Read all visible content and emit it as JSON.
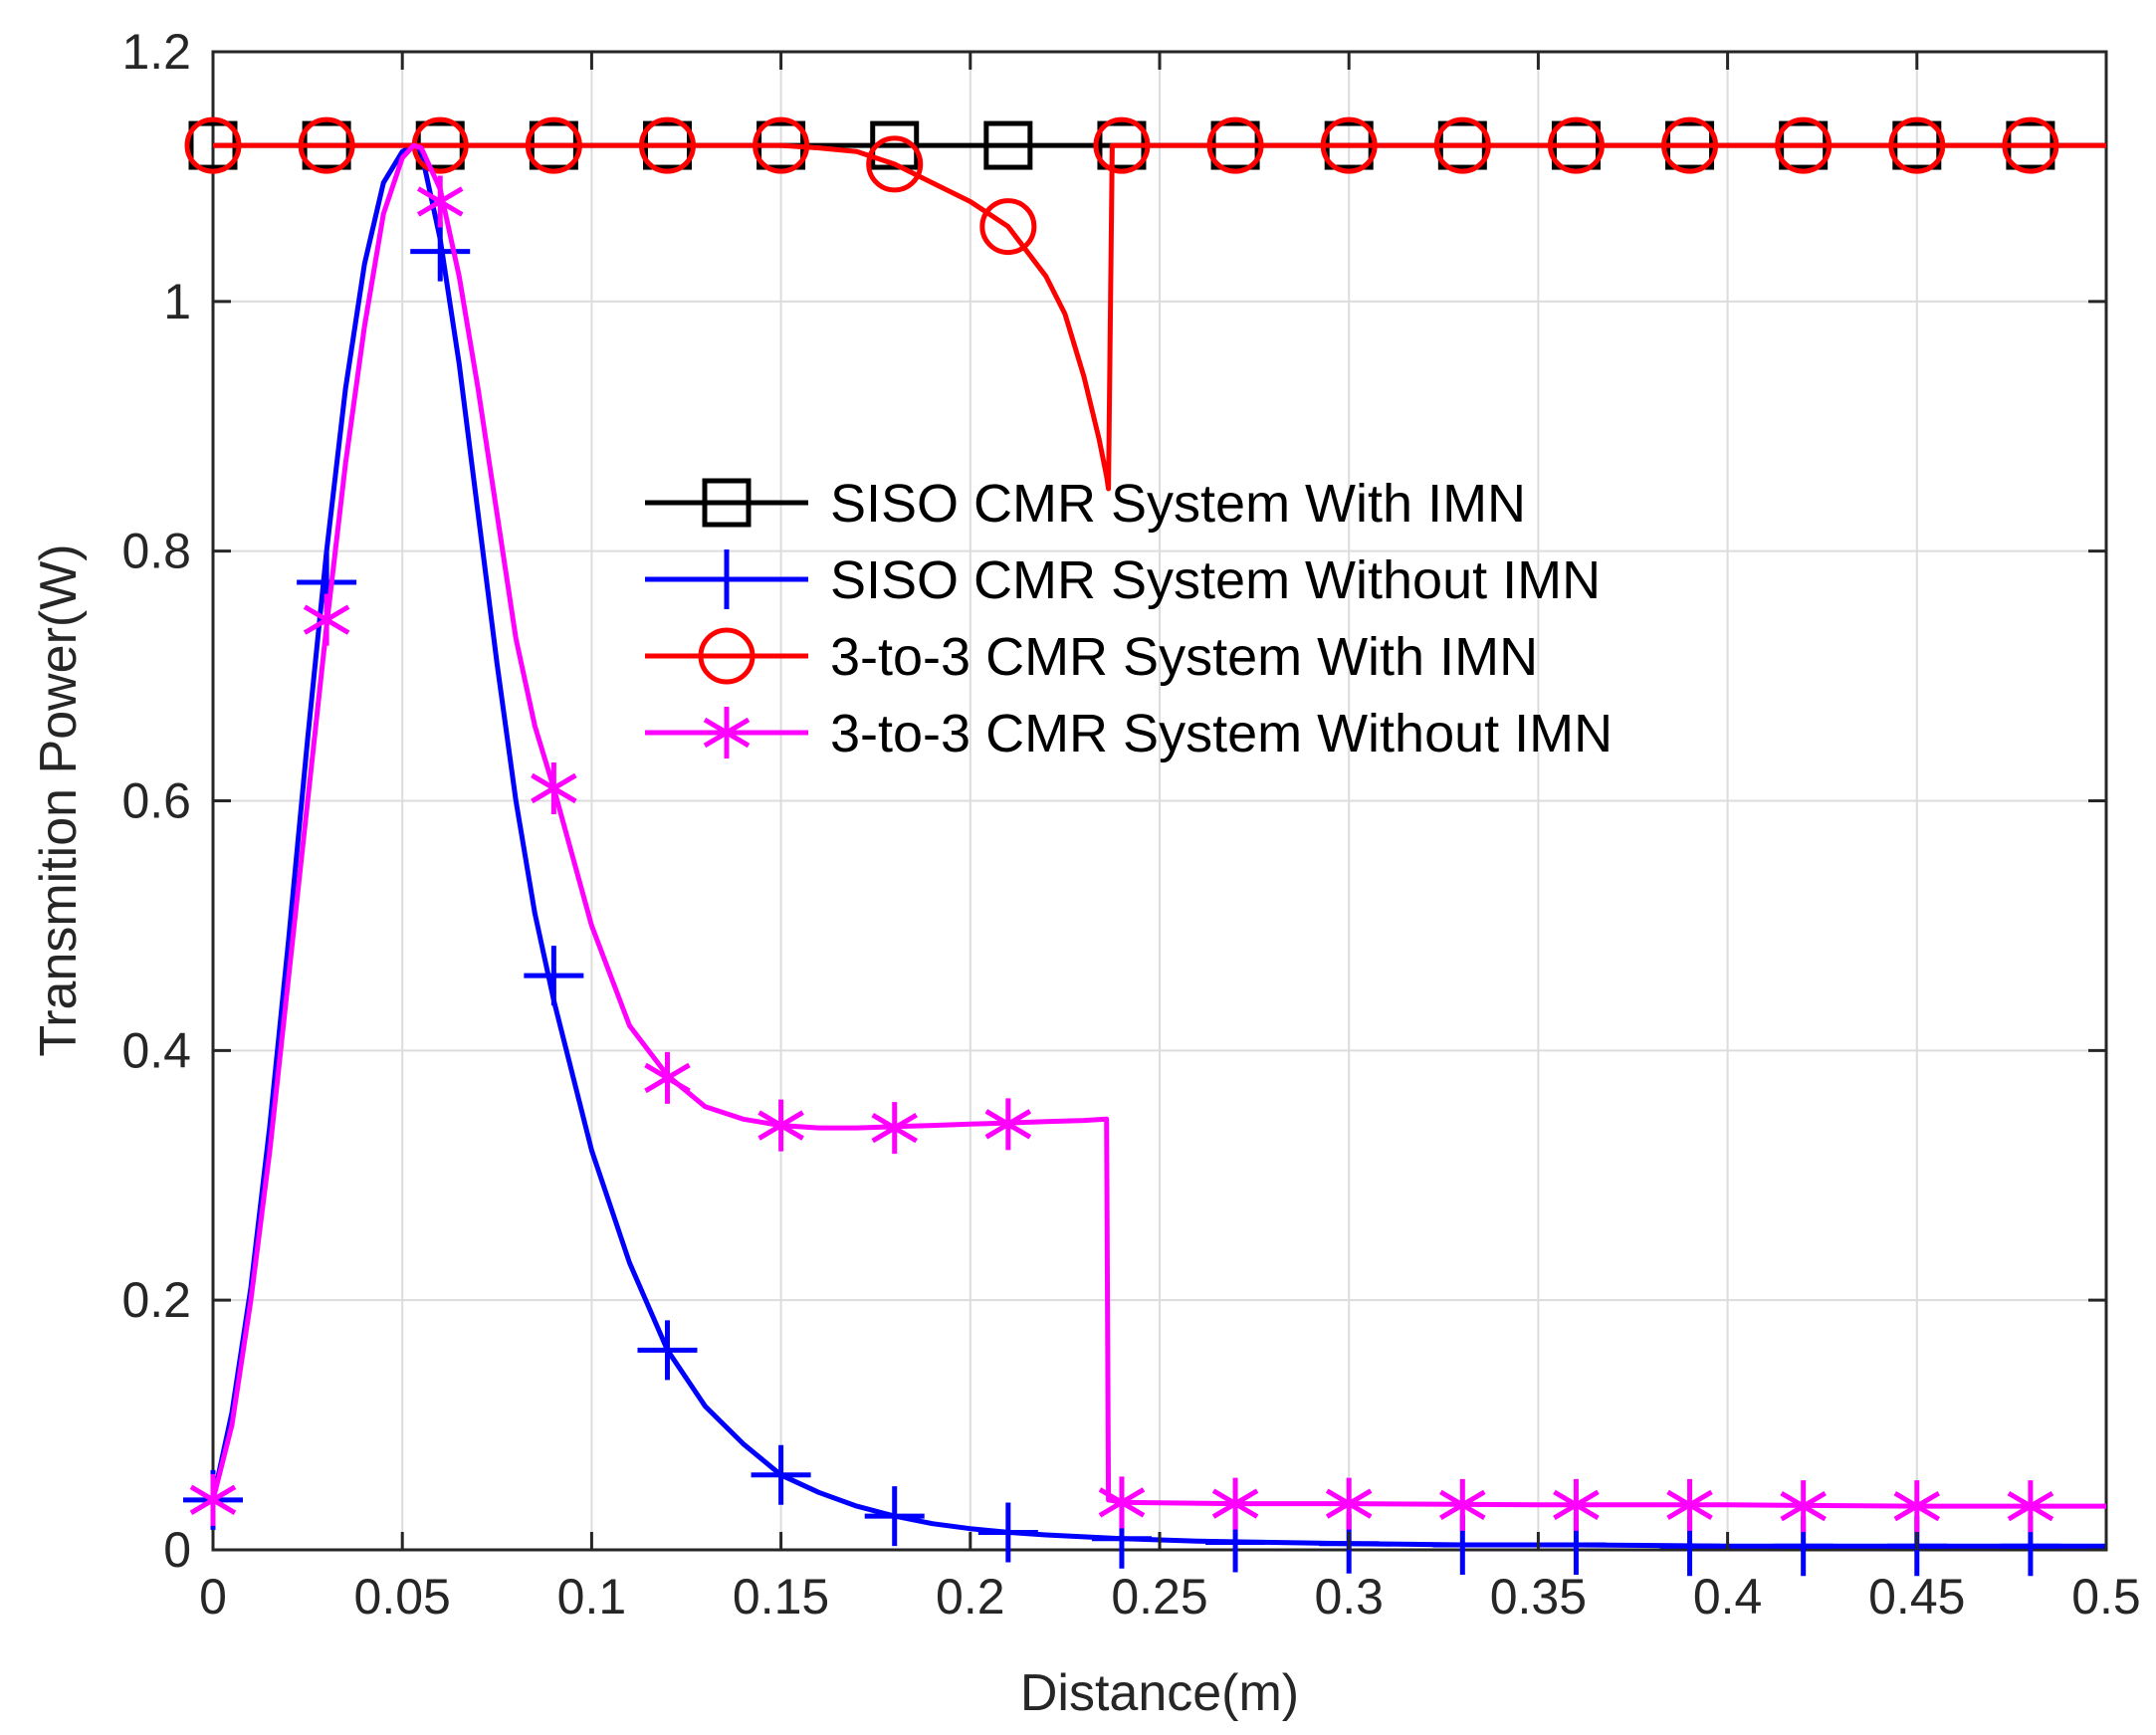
{
  "chart_data": {
    "type": "line",
    "title": "",
    "xlabel": "Distance(m)",
    "ylabel": "Transmition Power(W)",
    "xlim": [
      0,
      0.5
    ],
    "ylim": [
      0,
      1.2
    ],
    "xticks": [
      0,
      0.05,
      0.1,
      0.15,
      0.2,
      0.25,
      0.3,
      0.35,
      0.4,
      0.45,
      0.5
    ],
    "xtick_labels": [
      "0",
      "0.05",
      "0.1",
      "0.15",
      "0.2",
      "0.25",
      "0.3",
      "0.35",
      "0.4",
      "0.45",
      "0.5"
    ],
    "yticks": [
      0,
      0.2,
      0.4,
      0.6,
      0.8,
      1.0,
      1.2
    ],
    "ytick_labels": [
      "0",
      "0.2",
      "0.4",
      "0.6",
      "0.8",
      "1",
      "1.2"
    ],
    "grid": true,
    "legend_position": "center",
    "series": [
      {
        "name": "SISO CMR System With IMN",
        "color": "#000000",
        "marker": "square",
        "x": [
          0,
          0.1,
          0.18,
          0.24,
          0.5
        ],
        "y": [
          1.125,
          1.125,
          1.125,
          1.125,
          1.125
        ],
        "marker_x": [
          0,
          0.03,
          0.06,
          0.09,
          0.12,
          0.15,
          0.18,
          0.21,
          0.24,
          0.27,
          0.3,
          0.33,
          0.36,
          0.39,
          0.42,
          0.45,
          0.48
        ],
        "marker_y": [
          1.125,
          1.125,
          1.125,
          1.125,
          1.125,
          1.125,
          1.125,
          1.125,
          1.125,
          1.125,
          1.125,
          1.125,
          1.125,
          1.125,
          1.125,
          1.125,
          1.125
        ]
      },
      {
        "name": "SISO CMR System Without IMN",
        "color": "#0000ff",
        "marker": "plus",
        "x": [
          0,
          0.005,
          0.01,
          0.015,
          0.02,
          0.025,
          0.03,
          0.035,
          0.04,
          0.045,
          0.05,
          0.053,
          0.055,
          0.06,
          0.065,
          0.07,
          0.075,
          0.08,
          0.085,
          0.09,
          0.1,
          0.11,
          0.12,
          0.13,
          0.14,
          0.15,
          0.16,
          0.17,
          0.18,
          0.19,
          0.2,
          0.21,
          0.22,
          0.24,
          0.26,
          0.28,
          0.3,
          0.33,
          0.36,
          0.4,
          0.45,
          0.5
        ],
        "y": [
          0.04,
          0.11,
          0.21,
          0.34,
          0.49,
          0.65,
          0.8,
          0.93,
          1.03,
          1.095,
          1.12,
          1.125,
          1.12,
          1.05,
          0.95,
          0.83,
          0.71,
          0.6,
          0.51,
          0.44,
          0.32,
          0.23,
          0.16,
          0.115,
          0.085,
          0.06,
          0.046,
          0.035,
          0.027,
          0.021,
          0.017,
          0.014,
          0.012,
          0.009,
          0.007,
          0.006,
          0.005,
          0.004,
          0.004,
          0.003,
          0.003,
          0.003
        ],
        "marker_x": [
          0,
          0.03,
          0.06,
          0.09,
          0.12,
          0.15,
          0.18,
          0.21,
          0.24,
          0.27,
          0.3,
          0.33,
          0.36,
          0.39,
          0.42,
          0.45,
          0.48
        ],
        "marker_y": [
          0.04,
          0.775,
          1.04,
          0.46,
          0.16,
          0.06,
          0.027,
          0.014,
          0.009,
          0.006,
          0.005,
          0.004,
          0.004,
          0.003,
          0.003,
          0.003,
          0.003
        ]
      },
      {
        "name": "3-to-3 CMR System With IMN",
        "color": "#ff0000",
        "marker": "circle",
        "x": [
          0,
          0.15,
          0.16,
          0.17,
          0.18,
          0.19,
          0.2,
          0.21,
          0.22,
          0.225,
          0.23,
          0.234,
          0.236,
          0.2365,
          0.2375,
          0.24,
          0.5
        ],
        "y": [
          1.125,
          1.125,
          1.123,
          1.12,
          1.11,
          1.095,
          1.08,
          1.06,
          1.02,
          0.99,
          0.94,
          0.89,
          0.86,
          0.85,
          1.125,
          1.125,
          1.125
        ],
        "marker_x": [
          0,
          0.03,
          0.06,
          0.09,
          0.12,
          0.15,
          0.18,
          0.21,
          0.24,
          0.27,
          0.3,
          0.33,
          0.36,
          0.39,
          0.42,
          0.45,
          0.48
        ],
        "marker_y": [
          1.125,
          1.125,
          1.125,
          1.125,
          1.125,
          1.125,
          1.11,
          1.06,
          1.125,
          1.125,
          1.125,
          1.125,
          1.125,
          1.125,
          1.125,
          1.125,
          1.125
        ]
      },
      {
        "name": "3-to-3 CMR System Without IMN",
        "color": "#ff00ff",
        "marker": "asterisk",
        "x": [
          0,
          0.005,
          0.01,
          0.015,
          0.02,
          0.025,
          0.03,
          0.035,
          0.04,
          0.045,
          0.05,
          0.053,
          0.055,
          0.06,
          0.065,
          0.07,
          0.075,
          0.08,
          0.085,
          0.09,
          0.1,
          0.11,
          0.12,
          0.13,
          0.14,
          0.15,
          0.16,
          0.17,
          0.18,
          0.19,
          0.2,
          0.21,
          0.22,
          0.23,
          0.236,
          0.2365,
          0.24,
          0.27,
          0.3,
          0.35,
          0.4,
          0.45,
          0.5
        ],
        "y": [
          0.04,
          0.1,
          0.2,
          0.32,
          0.46,
          0.6,
          0.74,
          0.87,
          0.98,
          1.07,
          1.115,
          1.125,
          1.123,
          1.09,
          1.02,
          0.93,
          0.83,
          0.73,
          0.66,
          0.61,
          0.5,
          0.42,
          0.38,
          0.355,
          0.345,
          0.34,
          0.338,
          0.338,
          0.339,
          0.34,
          0.341,
          0.342,
          0.343,
          0.344,
          0.345,
          0.04,
          0.038,
          0.037,
          0.037,
          0.036,
          0.036,
          0.035,
          0.035
        ],
        "marker_x": [
          0,
          0.03,
          0.06,
          0.09,
          0.12,
          0.15,
          0.18,
          0.21,
          0.24,
          0.27,
          0.3,
          0.33,
          0.36,
          0.39,
          0.42,
          0.45,
          0.48
        ],
        "marker_y": [
          0.04,
          0.745,
          1.08,
          0.61,
          0.378,
          0.34,
          0.338,
          0.341,
          0.038,
          0.037,
          0.037,
          0.036,
          0.036,
          0.036,
          0.035,
          0.035,
          0.035
        ]
      }
    ]
  }
}
